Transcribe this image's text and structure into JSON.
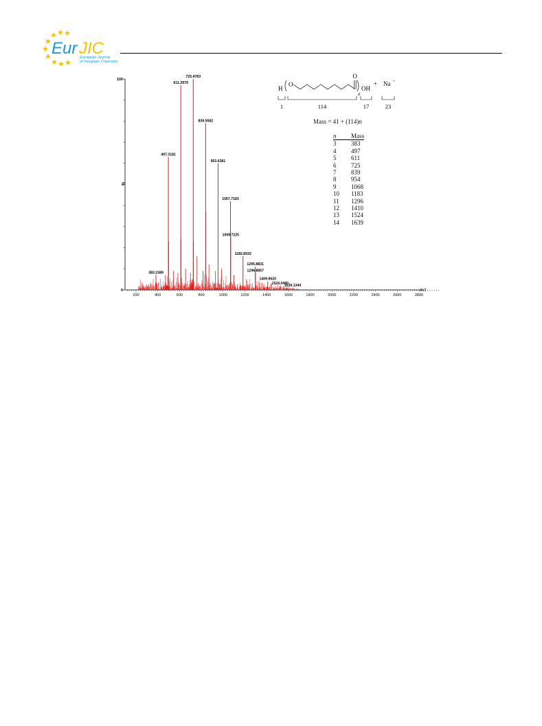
{
  "journal_logo": {
    "name_left": "Eur",
    "name_right": "JIC",
    "subtitle_line1": "European Journal",
    "subtitle_line2": "of Inorganic Chemistry"
  },
  "colors": {
    "spectrum": "#e01a1a",
    "logo_blue": "#1b9ad6",
    "logo_gold": "#f2c400",
    "axis": "#000000"
  },
  "structure": {
    "atom_h": "H",
    "atom_o_chain": "O",
    "atom_o_carbonyl": "O",
    "subscript_n": "n",
    "group_oh": "OH",
    "plus_sign": "+",
    "cation": "Na",
    "cation_charge": "+",
    "fragment_masses": [
      "1",
      "114",
      "17",
      "23"
    ]
  },
  "formula": {
    "prefix": "Mass = 41 + (114)",
    "variable": "n"
  },
  "table": {
    "header_n": "n",
    "header_mass": "Mass",
    "rows": [
      {
        "n": "3",
        "mass": "383"
      },
      {
        "n": "4",
        "mass": "497"
      },
      {
        "n": "5",
        "mass": "611"
      },
      {
        "n": "6",
        "mass": "725"
      },
      {
        "n": "7",
        "mass": "839"
      },
      {
        "n": "8",
        "mass": "954"
      },
      {
        "n": "9",
        "mass": "1068"
      },
      {
        "n": "10",
        "mass": "1183"
      },
      {
        "n": "11",
        "mass": "1296"
      },
      {
        "n": "12",
        "mass": "1410"
      },
      {
        "n": "13",
        "mass": "1524"
      },
      {
        "n": "14",
        "mass": "1639"
      }
    ]
  },
  "chart_data": {
    "type": "bar",
    "title": "",
    "xlabel": "m/z",
    "ylabel": "%",
    "xlim": [
      100,
      3000
    ],
    "ylim": [
      0,
      100
    ],
    "x_ticks": [
      200,
      400,
      600,
      800,
      1000,
      1200,
      1400,
      1600,
      1800,
      2000,
      2200,
      2400,
      2600,
      2800
    ],
    "y_ticks": [
      0,
      100
    ],
    "labeled_peaks": [
      {
        "x": 383.2389,
        "y": 7,
        "label": "383.2389"
      },
      {
        "x": 497.3181,
        "y": 63,
        "label": "497.3181"
      },
      {
        "x": 611.3979,
        "y": 97,
        "label": "611.3979"
      },
      {
        "x": 725.4783,
        "y": 100,
        "label": "725.4783"
      },
      {
        "x": 839.5582,
        "y": 79,
        "label": "839.5582"
      },
      {
        "x": 953.6381,
        "y": 60,
        "label": "953.6381"
      },
      {
        "x": 1067.7183,
        "y": 42,
        "label": "1067.7183"
      },
      {
        "x": 1069.7225,
        "y": 25,
        "label": "1069.7225"
      },
      {
        "x": 1182.8022,
        "y": 16,
        "label": "1182.8022"
      },
      {
        "x": 1295.8831,
        "y": 11,
        "label": "1295.8831"
      },
      {
        "x": 1296.8857,
        "y": 8,
        "label": "1296.8857"
      },
      {
        "x": 1409.962,
        "y": 4,
        "label": "1409.9620"
      },
      {
        "x": 1524.048,
        "y": 2,
        "label": "1524.0480"
      },
      {
        "x": 1639.1344,
        "y": 1,
        "label": "1639.1344"
      }
    ],
    "unlabeled_peaks": [
      {
        "x": 500,
        "y": 23
      },
      {
        "x": 614,
        "y": 24
      },
      {
        "x": 728,
        "y": 23
      },
      {
        "x": 842,
        "y": 37
      },
      {
        "x": 760,
        "y": 16
      },
      {
        "x": 655,
        "y": 10
      },
      {
        "x": 545,
        "y": 9
      },
      {
        "x": 870,
        "y": 12
      },
      {
        "x": 930,
        "y": 9
      },
      {
        "x": 985,
        "y": 10
      },
      {
        "x": 1100,
        "y": 7
      },
      {
        "x": 1215,
        "y": 5
      },
      {
        "x": 1330,
        "y": 4
      },
      {
        "x": 1440,
        "y": 3
      },
      {
        "x": 470,
        "y": 7
      },
      {
        "x": 585,
        "y": 8
      },
      {
        "x": 700,
        "y": 8
      },
      {
        "x": 815,
        "y": 9
      }
    ]
  }
}
